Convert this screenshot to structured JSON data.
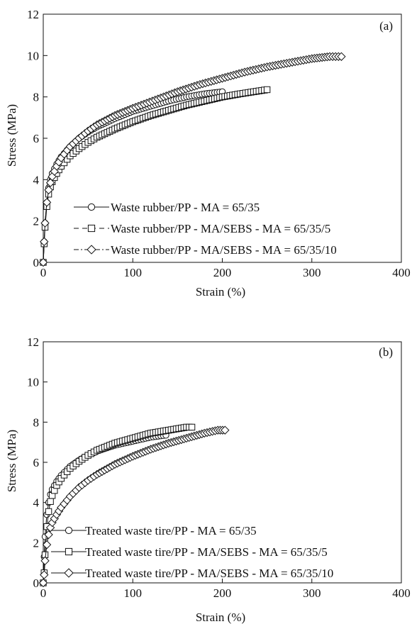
{
  "chart_data": [
    {
      "type": "line",
      "panel_label": "(a)",
      "xlabel": "Strain (%)",
      "ylabel": "Stress (MPa)",
      "xlim": [
        0,
        400
      ],
      "ylim": [
        0,
        12
      ],
      "xticks": [
        0,
        100,
        200,
        300,
        400
      ],
      "yticks": [
        0,
        2,
        4,
        6,
        8,
        10,
        12
      ],
      "grid": false,
      "legend_position": "lower-left",
      "series": [
        {
          "name": "Waste rubber/PP - MA = 65/35",
          "marker": "circle",
          "line_style": "solid",
          "x": [
            0,
            1,
            2,
            4,
            6,
            8,
            10,
            15,
            20,
            30,
            40,
            50,
            60,
            80,
            100,
            120,
            140,
            160,
            180,
            200
          ],
          "y": [
            0,
            1.0,
            1.9,
            2.9,
            3.6,
            4.0,
            4.3,
            4.75,
            5.1,
            5.6,
            6.0,
            6.3,
            6.55,
            6.95,
            7.3,
            7.55,
            7.8,
            8.0,
            8.15,
            8.25
          ]
        },
        {
          "name": "Waste rubber/PP - MA/SEBS - MA = 65/35/5",
          "marker": "square",
          "line_style": "dashed",
          "x": [
            0,
            1,
            2,
            4,
            6,
            8,
            10,
            15,
            20,
            30,
            40,
            50,
            60,
            80,
            100,
            120,
            140,
            160,
            180,
            200,
            220,
            250
          ],
          "y": [
            0,
            0.9,
            1.7,
            2.7,
            3.3,
            3.65,
            3.9,
            4.3,
            4.65,
            5.15,
            5.5,
            5.8,
            6.05,
            6.45,
            6.8,
            7.1,
            7.35,
            7.6,
            7.8,
            8.0,
            8.15,
            8.35
          ]
        },
        {
          "name": "Waste rubber/PP - MA/SEBS - MA = 65/35/10",
          "marker": "diamond",
          "line_style": "dash-dot",
          "x": [
            0,
            1,
            2,
            4,
            6,
            8,
            10,
            15,
            20,
            30,
            40,
            50,
            60,
            80,
            100,
            125,
            150,
            175,
            200,
            225,
            250,
            275,
            300,
            320,
            333
          ],
          "y": [
            0,
            1.0,
            1.9,
            2.9,
            3.5,
            3.85,
            4.15,
            4.65,
            5.05,
            5.6,
            6.0,
            6.35,
            6.65,
            7.1,
            7.45,
            7.85,
            8.25,
            8.6,
            8.9,
            9.2,
            9.45,
            9.65,
            9.85,
            9.95,
            9.95
          ]
        }
      ]
    },
    {
      "type": "line",
      "panel_label": "(b)",
      "xlabel": "Strain (%)",
      "ylabel": "Stress (MPa)",
      "xlim": [
        0,
        400
      ],
      "ylim": [
        0,
        12
      ],
      "xticks": [
        0,
        100,
        200,
        300,
        400
      ],
      "yticks": [
        0,
        2,
        4,
        6,
        8,
        10,
        12
      ],
      "grid": false,
      "legend_position": "lower-left",
      "series": [
        {
          "name": "Treated waste tire/PP - MA = 65/35",
          "marker": "circle",
          "line_style": "solid",
          "x": [
            0,
            1,
            2,
            4,
            6,
            8,
            10,
            15,
            20,
            30,
            40,
            50,
            60,
            80,
            100,
            120,
            137
          ],
          "y": [
            0,
            1.3,
            2.3,
            3.4,
            4.0,
            4.4,
            4.65,
            5.05,
            5.35,
            5.8,
            6.1,
            6.35,
            6.55,
            6.85,
            7.05,
            7.25,
            7.35
          ]
        },
        {
          "name": "Treated waste tire/PP - MA/SEBS - MA = 65/35/5",
          "marker": "square",
          "line_style": "solid",
          "x": [
            0,
            1,
            2,
            4,
            6,
            8,
            10,
            15,
            20,
            30,
            40,
            50,
            60,
            80,
            100,
            120,
            140,
            160,
            166
          ],
          "y": [
            0,
            0.5,
            1.4,
            2.8,
            3.55,
            4.05,
            4.35,
            4.85,
            5.2,
            5.7,
            6.05,
            6.35,
            6.6,
            6.95,
            7.2,
            7.45,
            7.6,
            7.75,
            7.75
          ]
        },
        {
          "name": "Treated waste tire/PP - MA/SEBS - MA = 65/35/10",
          "marker": "diamond",
          "line_style": "solid",
          "x": [
            0,
            1,
            2,
            4,
            6,
            8,
            10,
            15,
            20,
            30,
            40,
            50,
            60,
            80,
            100,
            120,
            140,
            160,
            180,
            195,
            203
          ],
          "y": [
            0,
            0.4,
            1.1,
            1.9,
            2.4,
            2.75,
            3.0,
            3.4,
            3.75,
            4.3,
            4.75,
            5.1,
            5.4,
            5.9,
            6.3,
            6.65,
            6.95,
            7.2,
            7.45,
            7.6,
            7.6
          ]
        }
      ]
    }
  ]
}
